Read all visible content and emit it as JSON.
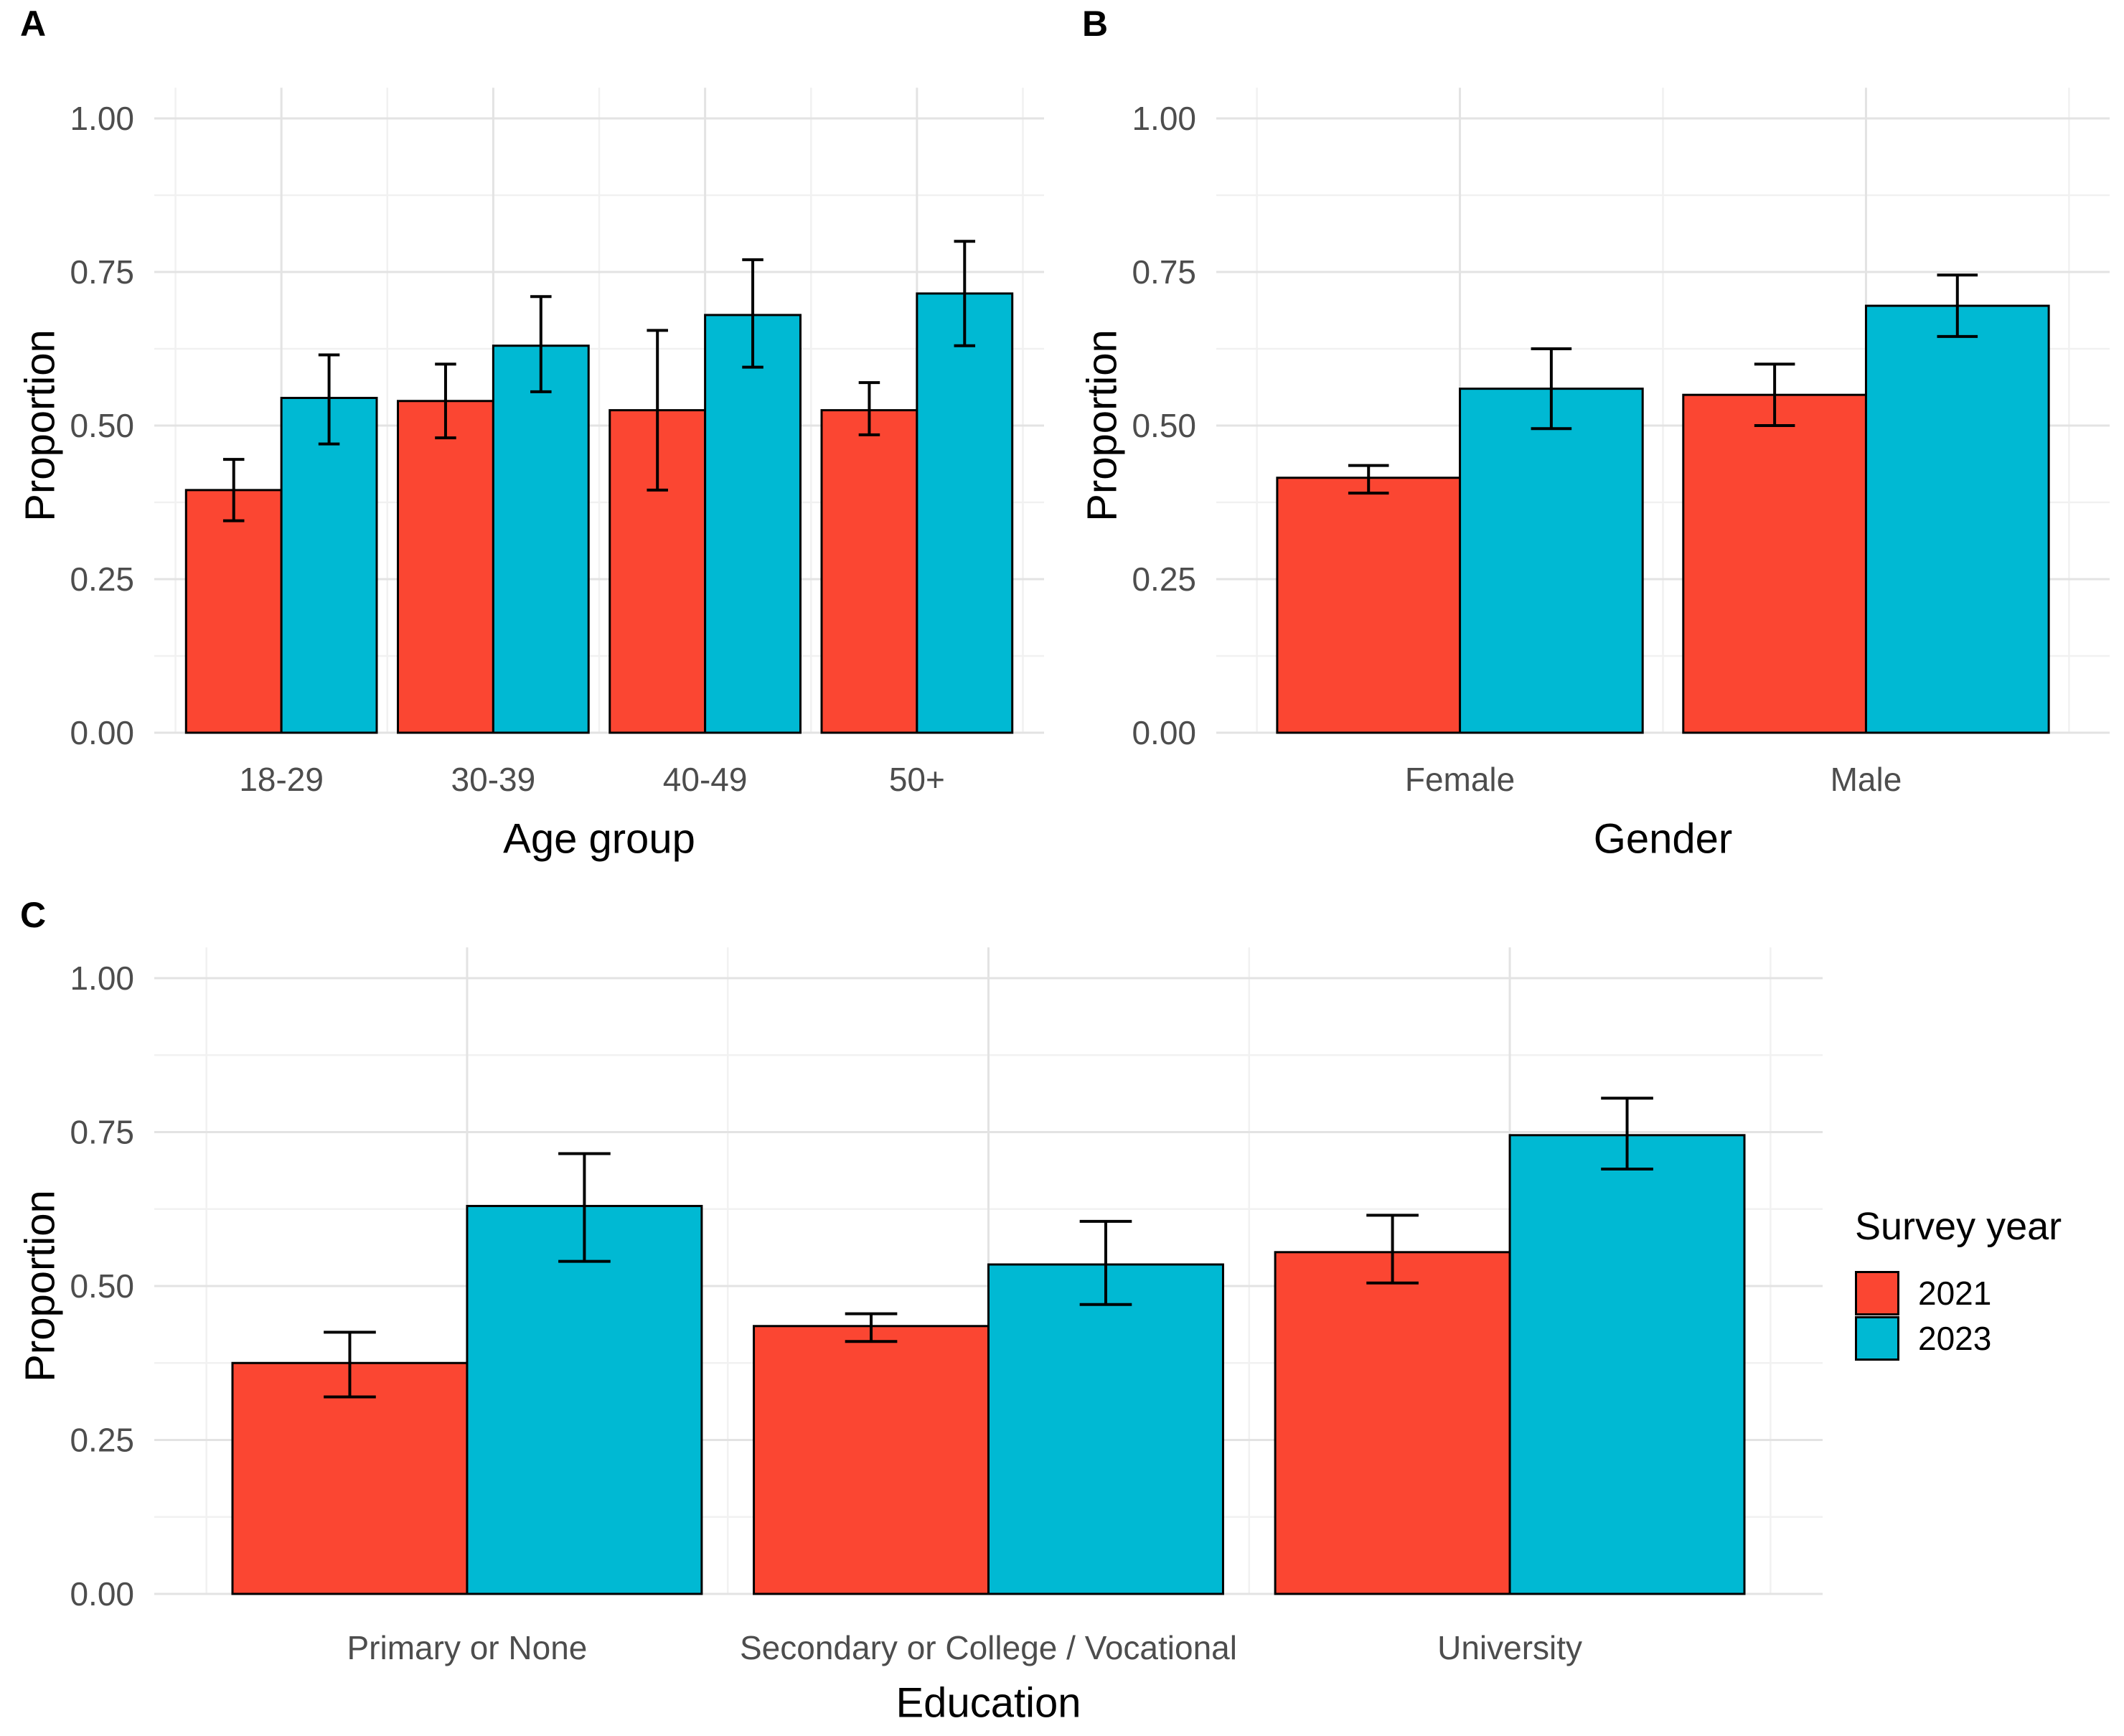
{
  "page": {
    "background": "#FFFFFF"
  },
  "colors": {
    "year_2021": "#FB4632",
    "year_2023": "#00B9D3",
    "grid_major": "#E3E3E3",
    "grid_minor": "#F1F1F1",
    "tick_label": "#4D4D4D",
    "axis_title": "#000000",
    "bar_outline": "#000000",
    "error_bar": "#000000"
  },
  "legend": {
    "title": "Survey year",
    "items": [
      {
        "label": "2021",
        "color": "#FB4632"
      },
      {
        "label": "2023",
        "color": "#00B9D3"
      }
    ]
  },
  "chart_data": [
    {
      "id": "A",
      "panel_label": "A",
      "type": "bar",
      "title": "",
      "xlabel": "Age group",
      "ylabel": "Proportion",
      "ylim": [
        0,
        1
      ],
      "grid": true,
      "legend_position": "right-of-figure",
      "ytick_values": [
        0,
        0.25,
        0.5,
        0.75,
        1
      ],
      "ytick_labels": [
        "0.00",
        "0.25",
        "0.50",
        "0.75",
        "1.00"
      ],
      "categories": [
        "18-29",
        "30-39",
        "40-49",
        "50+"
      ],
      "series": [
        {
          "name": "2021",
          "color": "#FB4632",
          "values": [
            0.395,
            0.54,
            0.525,
            0.525
          ],
          "error_low": [
            0.345,
            0.48,
            0.395,
            0.485
          ],
          "error_high": [
            0.445,
            0.6,
            0.655,
            0.57
          ]
        },
        {
          "name": "2023",
          "color": "#00B9D3",
          "values": [
            0.545,
            0.63,
            0.68,
            0.715
          ],
          "error_low": [
            0.47,
            0.555,
            0.595,
            0.63
          ],
          "error_high": [
            0.615,
            0.71,
            0.77,
            0.8
          ]
        }
      ]
    },
    {
      "id": "B",
      "panel_label": "B",
      "type": "bar",
      "title": "",
      "xlabel": "Gender",
      "ylabel": "Proportion",
      "ylim": [
        0,
        1
      ],
      "grid": true,
      "legend_position": "right-of-figure",
      "ytick_values": [
        0,
        0.25,
        0.5,
        0.75,
        1
      ],
      "ytick_labels": [
        "0.00",
        "0.25",
        "0.50",
        "0.75",
        "1.00"
      ],
      "categories": [
        "Female",
        "Male"
      ],
      "series": [
        {
          "name": "2021",
          "color": "#FB4632",
          "values": [
            0.415,
            0.55
          ],
          "error_low": [
            0.39,
            0.5
          ],
          "error_high": [
            0.435,
            0.6
          ]
        },
        {
          "name": "2023",
          "color": "#00B9D3",
          "values": [
            0.56,
            0.695
          ],
          "error_low": [
            0.495,
            0.645
          ],
          "error_high": [
            0.625,
            0.745
          ]
        }
      ]
    },
    {
      "id": "C",
      "panel_label": "C",
      "type": "bar",
      "title": "",
      "xlabel": "Education",
      "ylabel": "Proportion",
      "ylim": [
        0,
        1
      ],
      "grid": true,
      "legend_position": "right-of-figure",
      "ytick_values": [
        0,
        0.25,
        0.5,
        0.75,
        1
      ],
      "ytick_labels": [
        "0.00",
        "0.25",
        "0.50",
        "0.75",
        "1.00"
      ],
      "categories": [
        "Primary or None",
        "Secondary or College / Vocational",
        "University"
      ],
      "series": [
        {
          "name": "2021",
          "color": "#FB4632",
          "values": [
            0.375,
            0.435,
            0.555
          ],
          "error_low": [
            0.32,
            0.41,
            0.505
          ],
          "error_high": [
            0.425,
            0.455,
            0.615
          ]
        },
        {
          "name": "2023",
          "color": "#00B9D3",
          "values": [
            0.63,
            0.535,
            0.745
          ],
          "error_low": [
            0.54,
            0.47,
            0.69
          ],
          "error_high": [
            0.715,
            0.605,
            0.805
          ]
        }
      ]
    }
  ]
}
